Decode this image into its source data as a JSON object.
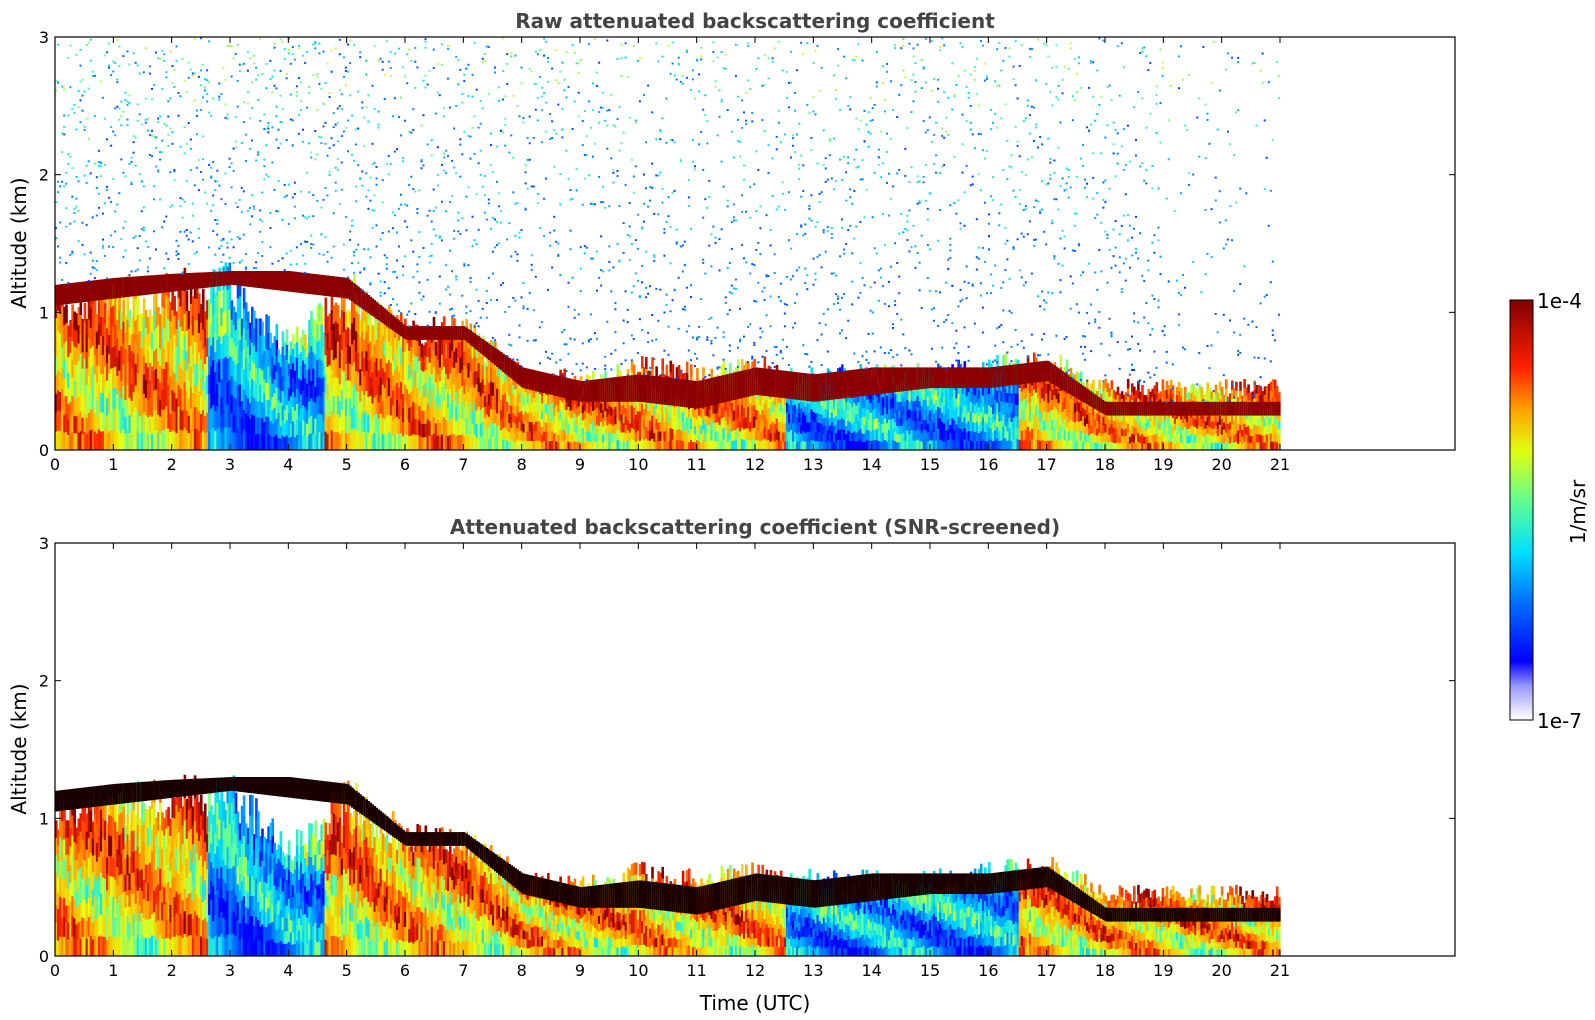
{
  "chart_data": [
    {
      "type": "heatmap",
      "title": "Raw attenuated backscattering coefficient",
      "xlabel": "",
      "ylabel": "Altitude (km)",
      "xlim": [
        0,
        24
      ],
      "ylim": [
        0,
        3
      ],
      "xticks": [
        "0",
        "1",
        "2",
        "3",
        "4",
        "5",
        "6",
        "7",
        "8",
        "9",
        "10",
        "11",
        "12",
        "13",
        "14",
        "15",
        "16",
        "17",
        "18",
        "19",
        "20",
        "21"
      ],
      "yticks": [
        "0",
        "1",
        "2",
        "3"
      ],
      "data_end_time": 21,
      "screened": false,
      "layer_profile": [
        {
          "t": 0,
          "cloud_base": 1.05,
          "cloud_top": 1.2,
          "bl_top": 1.05
        },
        {
          "t": 1,
          "cloud_base": 1.1,
          "cloud_top": 1.25,
          "bl_top": 1.1
        },
        {
          "t": 2,
          "cloud_base": 1.15,
          "cloud_top": 1.28,
          "bl_top": 1.15
        },
        {
          "t": 3,
          "cloud_base": 1.2,
          "cloud_top": 1.3,
          "bl_top": 1.2
        },
        {
          "t": 4,
          "cloud_base": 1.15,
          "cloud_top": 1.3,
          "bl_top": 0.75
        },
        {
          "t": 5,
          "cloud_base": 1.1,
          "cloud_top": 1.25,
          "bl_top": 1.15
        },
        {
          "t": 6,
          "cloud_base": 0.8,
          "cloud_top": 0.9,
          "bl_top": 0.85
        },
        {
          "t": 7,
          "cloud_base": 0.8,
          "cloud_top": 0.9,
          "bl_top": 0.85
        },
        {
          "t": 8,
          "cloud_base": 0.45,
          "cloud_top": 0.6,
          "bl_top": 0.55
        },
        {
          "t": 9,
          "cloud_base": 0.35,
          "cloud_top": 0.5,
          "bl_top": 0.5
        },
        {
          "t": 10,
          "cloud_base": 0.35,
          "cloud_top": 0.55,
          "bl_top": 0.6
        },
        {
          "t": 11,
          "cloud_base": 0.3,
          "cloud_top": 0.5,
          "bl_top": 0.55
        },
        {
          "t": 12,
          "cloud_base": 0.4,
          "cloud_top": 0.6,
          "bl_top": 0.6
        },
        {
          "t": 13,
          "cloud_base": 0.35,
          "cloud_top": 0.55,
          "bl_top": 0.55
        },
        {
          "t": 14,
          "cloud_base": 0.4,
          "cloud_top": 0.6,
          "bl_top": 0.55
        },
        {
          "t": 15,
          "cloud_base": 0.45,
          "cloud_top": 0.6,
          "bl_top": 0.55
        },
        {
          "t": 16,
          "cloud_base": 0.45,
          "cloud_top": 0.6,
          "bl_top": 0.6
        },
        {
          "t": 17,
          "cloud_base": 0.5,
          "cloud_top": 0.65,
          "bl_top": 0.65
        },
        {
          "t": 18,
          "cloud_base": 0.25,
          "cloud_top": 0.35,
          "bl_top": 0.45
        },
        {
          "t": 19,
          "cloud_base": 0.25,
          "cloud_top": 0.35,
          "bl_top": 0.45
        },
        {
          "t": 20,
          "cloud_base": 0.25,
          "cloud_top": 0.35,
          "bl_top": 0.45
        },
        {
          "t": 21,
          "cloud_base": 0.25,
          "cloud_top": 0.35,
          "bl_top": 0.45
        }
      ]
    },
    {
      "type": "heatmap",
      "title": "Attenuated backscattering coefficient (SNR-screened)",
      "xlabel": "Time (UTC)",
      "ylabel": "Altitude (km)",
      "xlim": [
        0,
        24
      ],
      "ylim": [
        0,
        3
      ],
      "xticks": [
        "0",
        "1",
        "2",
        "3",
        "4",
        "5",
        "6",
        "7",
        "8",
        "9",
        "10",
        "11",
        "12",
        "13",
        "14",
        "15",
        "16",
        "17",
        "18",
        "19",
        "20",
        "21"
      ],
      "yticks": [
        "0",
        "1",
        "2",
        "3"
      ],
      "data_end_time": 21,
      "screened": true
    }
  ],
  "colorbar": {
    "label": "1/m/sr",
    "max_label": "1e-4",
    "min_label": "1e-7",
    "scale": "log",
    "colormap": "jet"
  }
}
